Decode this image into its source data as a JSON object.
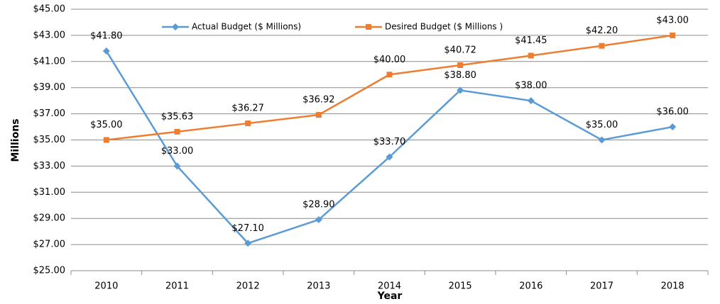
{
  "chart_data": {
    "type": "line",
    "x_label": "Year",
    "y_label": "Millions",
    "categories": [
      "2010",
      "2011",
      "2012",
      "2013",
      "2014",
      "2015",
      "2016",
      "2017",
      "2018"
    ],
    "series": [
      {
        "name": "Actual Budget ($ Millions)",
        "color": "#5b9bd5",
        "marker": "diamond",
        "values": [
          41.8,
          33.0,
          27.1,
          28.9,
          33.7,
          38.8,
          38.0,
          35.0,
          36.0
        ],
        "value_labels": [
          "$41.80",
          "$33.00",
          "$27.10",
          "$28.90",
          "$33.70",
          "$38.80",
          "$38.00",
          "$35.00",
          "$36.00"
        ]
      },
      {
        "name": "Desired Budget ($ Millions )",
        "color": "#ed7d31",
        "marker": "square",
        "values": [
          35.0,
          35.63,
          36.27,
          36.92,
          40.0,
          40.72,
          41.45,
          42.2,
          43.0
        ],
        "value_labels": [
          "$35.00",
          "$35.63",
          "$36.27",
          "$36.92",
          "$40.00",
          "$40.72",
          "$41.45",
          "$42.20",
          "$43.00"
        ]
      }
    ],
    "ylim": [
      25,
      45
    ],
    "yticks": [
      {
        "value": 25,
        "label": "$25.00"
      },
      {
        "value": 27,
        "label": "$27.00"
      },
      {
        "value": 29,
        "label": "$29.00"
      },
      {
        "value": 31,
        "label": "$31.00"
      },
      {
        "value": 33,
        "label": "$33.00"
      },
      {
        "value": 35,
        "label": "$35.00"
      },
      {
        "value": 37,
        "label": "$37.00"
      },
      {
        "value": 39,
        "label": "$39.00"
      },
      {
        "value": 41,
        "label": "$41.00"
      },
      {
        "value": 43,
        "label": "$43.00"
      },
      {
        "value": 45,
        "label": "$45.00"
      }
    ],
    "grid": true,
    "legend": "top"
  }
}
